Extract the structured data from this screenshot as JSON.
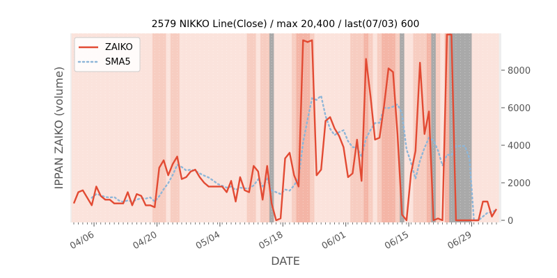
{
  "chart_data": {
    "type": "line",
    "title": "2579 NIKKO Line(Close) / max 20,400 / last(07/03) 600",
    "xlabel": "DATE",
    "ylabel": "IPPAN ZAIKO (volume)",
    "ylim": [
      0,
      9900
    ],
    "y_ticks": [
      0,
      2000,
      4000,
      6000,
      8000
    ],
    "y_tick_labels": [
      "0",
      "2000",
      "4000",
      "6000",
      "8000"
    ],
    "x_tick_labels": [
      "04/06",
      "04/20",
      "05/04",
      "05/18",
      "06/01",
      "06/15",
      "06/29"
    ],
    "x_tick_positions": [
      4.5,
      18.5,
      32.5,
      46.5,
      60.5,
      74.5,
      88.5
    ],
    "legend_position": "top-left",
    "grid": false,
    "colors": {
      "zaiko": "#e24a33",
      "sma5": "#8eb6d8",
      "band_light": "#fbe3dc",
      "band_mid": "#f7cdc1",
      "band_strong": "#f4b5a6",
      "band_gray": "#a9a9a9",
      "plot_bg": "#eeeeee"
    },
    "series": [
      {
        "name": "ZAIKO",
        "values": [
          900,
          1500,
          1600,
          1200,
          800,
          1800,
          1300,
          1100,
          1100,
          900,
          900,
          900,
          1500,
          800,
          1400,
          1300,
          800,
          800,
          700,
          2800,
          3200,
          2400,
          3000,
          3400,
          2200,
          2300,
          2600,
          2700,
          2300,
          2000,
          1800,
          1800,
          1800,
          1800,
          1500,
          2100,
          1000,
          2300,
          1600,
          1500,
          2900,
          2600,
          1100,
          2900,
          900,
          0,
          100,
          3300,
          3600,
          2400,
          1800,
          9600,
          9500,
          9600,
          2400,
          2700,
          5300,
          5500,
          4900,
          4500,
          3900,
          2300,
          2500,
          4300,
          2100,
          8600,
          6600,
          4300,
          4400,
          6100,
          8100,
          7900,
          4600,
          300,
          0,
          2500,
          3700,
          8400,
          4600,
          5800,
          0,
          100,
          0,
          9900,
          9900,
          0,
          0,
          0,
          0,
          0,
          0,
          1000,
          1000,
          200,
          600
        ]
      },
      {
        "name": "SMA5",
        "values": [
          null,
          null,
          null,
          null,
          1200,
          1400,
          1340,
          1240,
          1220,
          1240,
          1060,
          980,
          1060,
          1000,
          1100,
          1180,
          1160,
          1220,
          1000,
          1280,
          1660,
          1980,
          2420,
          2960,
          2840,
          2660,
          2700,
          2640,
          2500,
          2380,
          2280,
          2120,
          1940,
          1840,
          1740,
          1800,
          1620,
          1740,
          1700,
          1700,
          1860,
          2180,
          1820,
          2200,
          1600,
          1500,
          1400,
          1640,
          1580,
          1860,
          2240,
          4140,
          5380,
          6500,
          6420,
          6640,
          5560,
          4880,
          4540,
          4700,
          4800,
          4220,
          3900,
          3880,
          3400,
          4360,
          4820,
          5180,
          5200,
          6000,
          5980,
          6060,
          6180,
          5680,
          3780,
          3080,
          2220,
          3180,
          3860,
          4400,
          4260,
          3720,
          2920,
          3500,
          3460,
          3960,
          3960,
          3960,
          3300,
          0,
          0,
          200,
          400,
          440,
          560
        ]
      }
    ],
    "shade_levels": [
      1,
      1,
      1,
      1,
      1,
      1,
      1,
      1,
      1,
      1,
      1,
      1,
      1,
      1,
      1,
      1,
      1,
      1,
      2,
      2,
      2,
      1,
      2,
      2,
      1,
      1,
      1,
      1,
      1,
      1,
      1,
      1,
      1,
      1,
      1,
      1,
      1,
      1,
      1,
      2,
      2,
      1,
      2,
      2,
      4,
      1,
      1,
      1,
      1,
      2,
      3,
      3,
      3,
      2,
      1,
      1,
      1,
      1,
      1,
      1,
      1,
      1,
      2,
      2,
      2,
      3,
      2,
      1,
      2,
      3,
      3,
      3,
      2,
      4,
      1,
      1,
      2,
      2,
      2,
      3,
      4,
      2,
      1,
      3,
      4,
      4,
      4,
      4,
      4,
      1,
      1,
      1,
      1,
      1,
      1
    ]
  }
}
